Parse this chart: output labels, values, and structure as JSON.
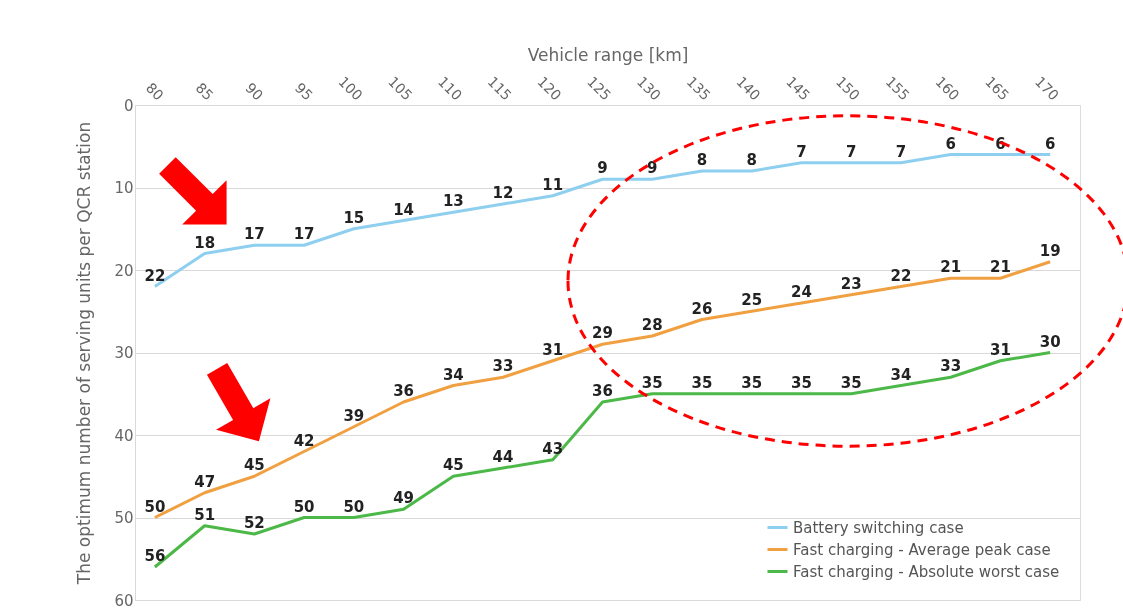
{
  "chart_data": {
    "type": "line",
    "xlabel": "Vehicle range [km]",
    "ylabel": "The optimum number of serving units per QCR station",
    "x": [
      80,
      85,
      90,
      95,
      100,
      105,
      110,
      115,
      120,
      125,
      130,
      135,
      140,
      145,
      150,
      155,
      160,
      165,
      170
    ],
    "series": [
      {
        "name": "Battery switching case",
        "color": "#8ecfef",
        "values": [
          22,
          18,
          17,
          17,
          15,
          14,
          13,
          12,
          11,
          9,
          9,
          8,
          8,
          7,
          7,
          7,
          6,
          6,
          6
        ]
      },
      {
        "name": "Fast charging - Average peak case",
        "color": "#f0a040",
        "values": [
          50,
          47,
          45,
          42,
          39,
          36,
          34,
          33,
          31,
          29,
          28,
          26,
          25,
          24,
          23,
          22,
          21,
          21,
          19
        ]
      },
      {
        "name": "Fast charging - Absolute worst case",
        "color": "#4cb848",
        "values": [
          56,
          51,
          52,
          50,
          50,
          49,
          45,
          44,
          43,
          36,
          35,
          35,
          35,
          35,
          35,
          34,
          33,
          31,
          30
        ]
      }
    ],
    "xlim": [
      78,
      173
    ],
    "xticks": [
      80,
      85,
      90,
      95,
      100,
      105,
      110,
      115,
      120,
      125,
      130,
      135,
      140,
      145,
      150,
      155,
      160,
      165,
      170
    ],
    "ylim": [
      60,
      0
    ],
    "yticks": [
      0,
      10,
      20,
      30,
      40,
      50,
      60
    ],
    "grid": "y",
    "legend": "bottom right",
    "data_labels": true,
    "marker": "none",
    "line_style": "solid"
  }
}
